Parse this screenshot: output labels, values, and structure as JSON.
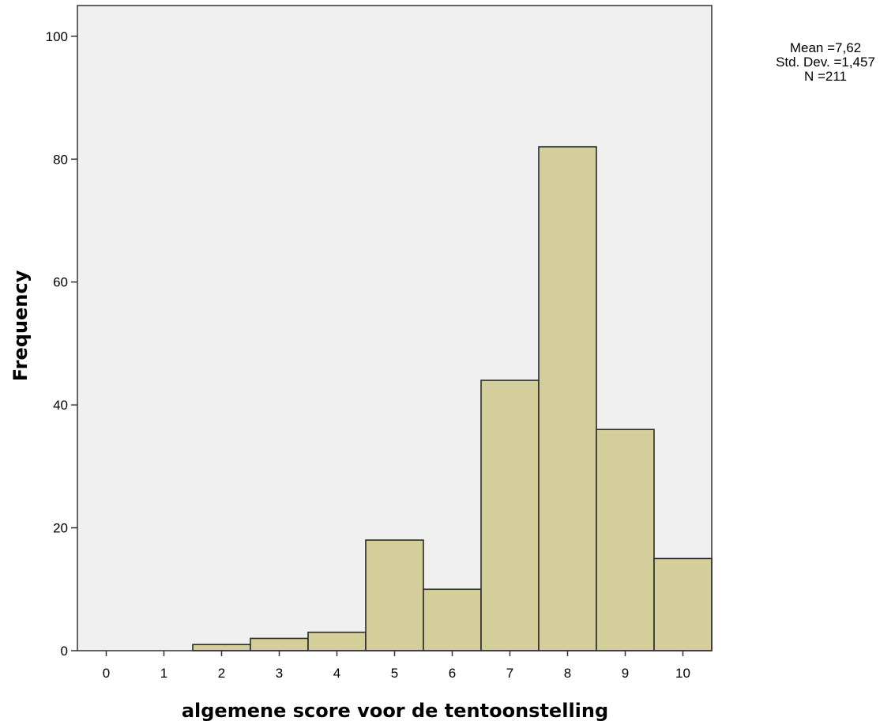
{
  "chart_data": {
    "type": "bar",
    "title": "",
    "xlabel": "algemene score voor de tentoonstelling",
    "ylabel": "Frequency",
    "categories": [
      "0",
      "1",
      "2",
      "3",
      "4",
      "5",
      "6",
      "7",
      "8",
      "9",
      "10"
    ],
    "values": [
      0,
      0,
      1,
      2,
      3,
      18,
      10,
      44,
      82,
      36,
      15
    ],
    "xlim": [
      -0.5,
      10.5
    ],
    "ylim": [
      0,
      105
    ],
    "yticks": [
      0,
      20,
      40,
      60,
      80,
      100
    ],
    "grid": false,
    "legend": "none",
    "colors": {
      "bar_fill": "#d3ce9a",
      "bar_stroke": "#2b2b2b",
      "plot_background": "#f0f0f0"
    },
    "stats": {
      "mean": "Mean =7,62",
      "std_dev": "Std. Dev. =1,457",
      "n": "N =211"
    }
  }
}
